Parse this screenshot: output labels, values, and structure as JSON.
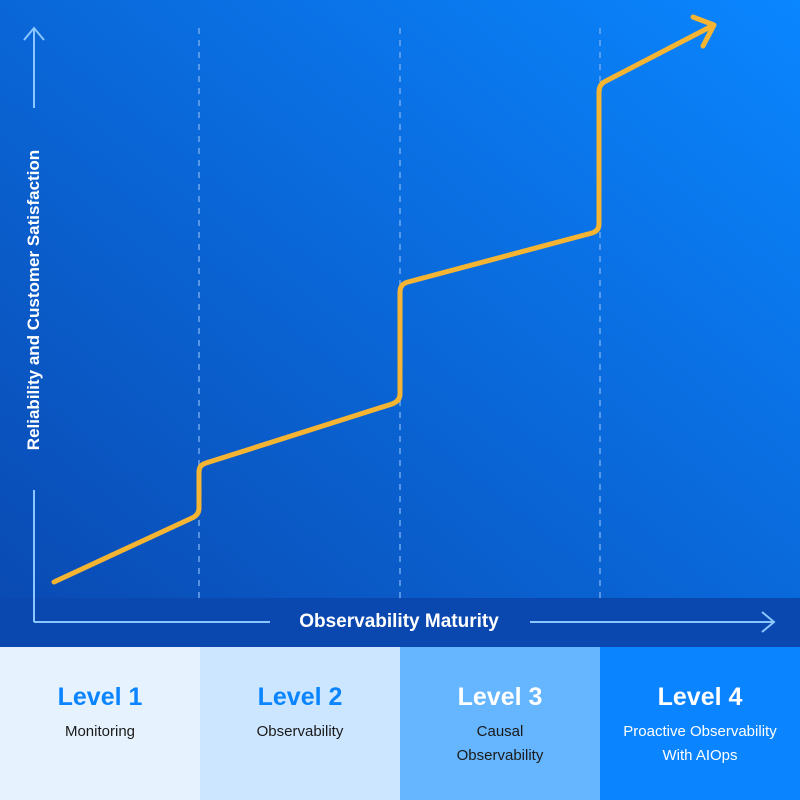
{
  "diagram": {
    "x_axis_label": "Observability Maturity",
    "y_axis_label": "Reliability and Customer Satisfaction",
    "levels": [
      {
        "title": "Level 1",
        "description_lines": [
          "Monitoring"
        ],
        "bg": "#e6f3ff",
        "title_color": "#0a84ff",
        "text_color": "#1a1a1a"
      },
      {
        "title": "Level 2",
        "description_lines": [
          "Observability"
        ],
        "bg": "#cce6ff",
        "title_color": "#0a84ff",
        "text_color": "#1a1a1a"
      },
      {
        "title": "Level 3",
        "description_lines": [
          "Causal",
          "Observability"
        ],
        "bg": "#66b5ff",
        "title_color": "#ffffff",
        "text_color": "#1a1a1a"
      },
      {
        "title": "Level 4",
        "description_lines": [
          "Proactive Observability",
          "With AIOps"
        ],
        "bg": "#0a84ff",
        "title_color": "#ffffff",
        "text_color": "#ffffff"
      }
    ]
  },
  "colors": {
    "background_top_left": "#0a4fb8",
    "background_top_right": "#0a7fff",
    "axis_band": "#0a48b0",
    "axis": "#8cc6ff",
    "gridline": "#6ea8ee",
    "growth_line": "#f5b431"
  }
}
